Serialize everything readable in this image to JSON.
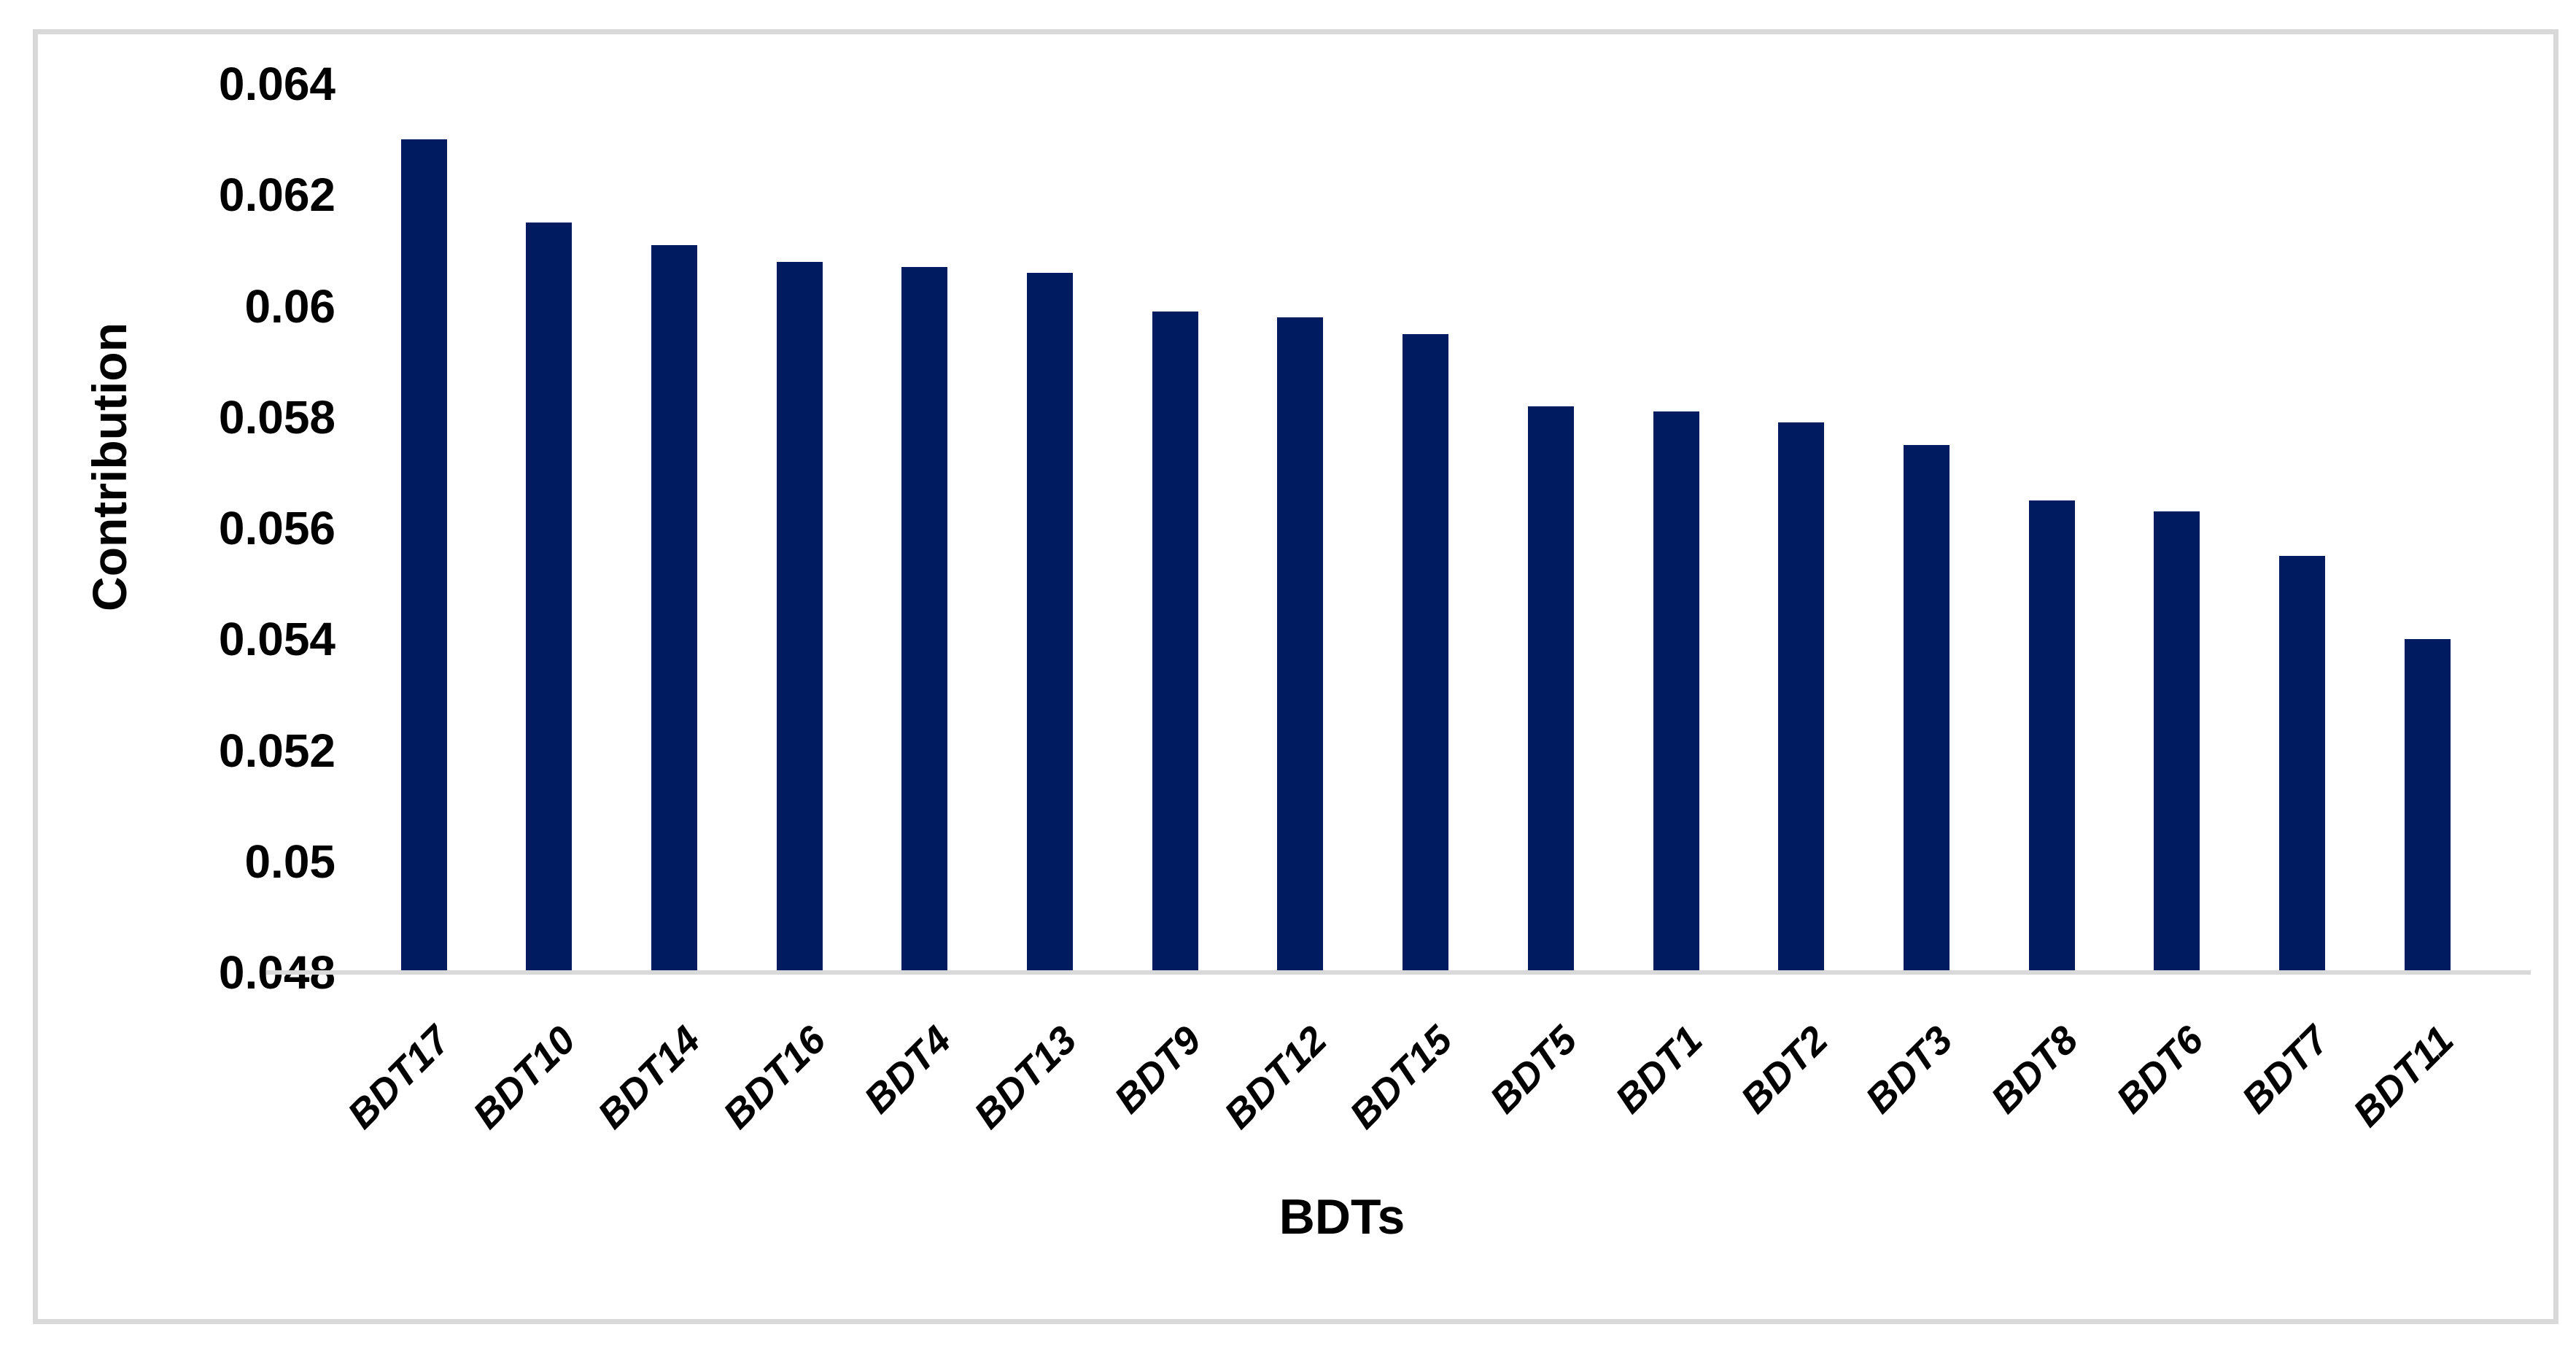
{
  "chart_data": {
    "type": "bar",
    "title": "",
    "xlabel": "BDTs",
    "ylabel": "Contribution",
    "categories": [
      "BDT17",
      "BDT10",
      "BDT14",
      "BDT16",
      "BDT4",
      "BDT13",
      "BDT9",
      "BDT12",
      "BDT15",
      "BDT5",
      "BDT1",
      "BDT2",
      "BDT3",
      "BDT8",
      "BDT6",
      "BDT7",
      "BDT11"
    ],
    "values": [
      0.063,
      0.0615,
      0.0611,
      0.0608,
      0.0607,
      0.0606,
      0.0599,
      0.0598,
      0.0595,
      0.0582,
      0.0581,
      0.0579,
      0.0575,
      0.0565,
      0.0563,
      0.0555,
      0.054
    ],
    "ylim": [
      0.048,
      0.064
    ],
    "ytick_step": 0.002,
    "yticks": [
      0.064,
      0.062,
      0.06,
      0.058,
      0.056,
      0.054,
      0.052,
      0.05,
      0.048
    ],
    "ytick_labels": [
      "0.064",
      "0.062",
      "0.06",
      "0.058",
      "0.056",
      "0.054",
      "0.052",
      "0.05",
      "0.048"
    ],
    "grid": false,
    "legend": null,
    "colors": {
      "bar": "#011B60",
      "axis_line": "#D9D9D9",
      "figure_border": "#D9D9D9",
      "text": "#000000",
      "background": "#FFFFFF"
    }
  }
}
